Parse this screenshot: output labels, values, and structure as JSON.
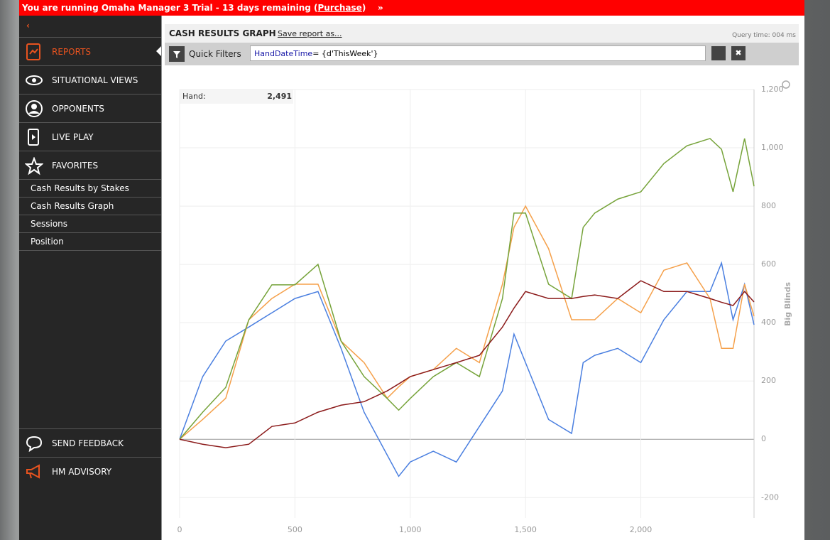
{
  "banner": {
    "prefix": "You are running Omaha Manager 3 Trial - 13 days remaining (",
    "link": "Purchase",
    "suffix": ")"
  },
  "nav": [
    "REPORTS",
    "SITUATIONAL VIEWS",
    "OPPONENTS",
    "LIVE PLAY",
    "FAVORITES"
  ],
  "favorites": [
    "Cash Results by Stakes",
    "Cash Results Graph",
    "Sessions",
    "Position"
  ],
  "footer_nav": [
    "SEND FEEDBACK",
    "HM ADVISORY"
  ],
  "report": {
    "title": "CASH RESULTS GRAPH",
    "save": "Save report as...",
    "query_time": "Query time: 004 ms",
    "filter_label": "Quick Filters",
    "filter_field": "HandDateTime",
    "filter_value": "= {d'ThisWeek'}"
  },
  "chart_data": {
    "type": "line",
    "readout": {
      "label": "Hand:",
      "value": "2,491"
    },
    "y_axis_label": "Big Blinds",
    "x": [
      0,
      100,
      200,
      300,
      400,
      500,
      600,
      700,
      800,
      900,
      950,
      1000,
      1100,
      1200,
      1300,
      1400,
      1450,
      1500,
      1600,
      1700,
      1750,
      1800,
      1900,
      2000,
      2100,
      2200,
      2300,
      2350,
      2400,
      2450,
      2491
    ],
    "series": [
      {
        "color": "#4a7fe0",
        "values": [
          0,
          215,
          337,
          385,
          434,
          483,
          507,
          312,
          93,
          -54,
          -127,
          -78,
          -41,
          -78,
          44,
          166,
          361,
          263,
          68,
          20,
          263,
          288,
          312,
          263,
          410,
          507,
          507,
          605,
          410,
          532,
          393
        ]
      },
      {
        "color": "#f5a04a",
        "values": [
          0,
          68,
          141,
          410,
          483,
          532,
          532,
          337,
          263,
          141,
          180,
          215,
          239,
          312,
          263,
          532,
          727,
          800,
          654,
          410,
          410,
          410,
          483,
          434,
          580,
          605,
          483,
          312,
          312,
          532,
          422
        ]
      },
      {
        "color": "#76a33a",
        "values": [
          0,
          93,
          178,
          410,
          530,
          530,
          600,
          337,
          215,
          140,
          100,
          140,
          215,
          263,
          215,
          483,
          776,
          776,
          532,
          483,
          727,
          776,
          824,
          849,
          946,
          1007,
          1032,
          995,
          849,
          1032,
          868
        ]
      },
      {
        "color": "#8b1a1a",
        "values": [
          0,
          -17,
          -29,
          -17,
          44,
          56,
          93,
          117,
          129,
          166,
          190,
          215,
          239,
          263,
          288,
          385,
          450,
          507,
          483,
          483,
          490,
          495,
          483,
          544,
          507,
          507,
          483,
          470,
          459,
          507,
          471
        ]
      }
    ],
    "xlim": [
      0,
      2491
    ],
    "ylim": [
      -270,
      1200
    ],
    "xticks": [
      0,
      500,
      {
        "value": 1000,
        "label": "1,000"
      },
      {
        "value": 1500,
        "label": "1,500"
      },
      {
        "value": 2000,
        "label": "2,000"
      }
    ],
    "yticks": [
      -200,
      0,
      200,
      400,
      600,
      800,
      {
        "value": 1000,
        "label": "1,000"
      },
      {
        "value": 1200,
        "label": "1,200"
      }
    ],
    "grid": true
  }
}
